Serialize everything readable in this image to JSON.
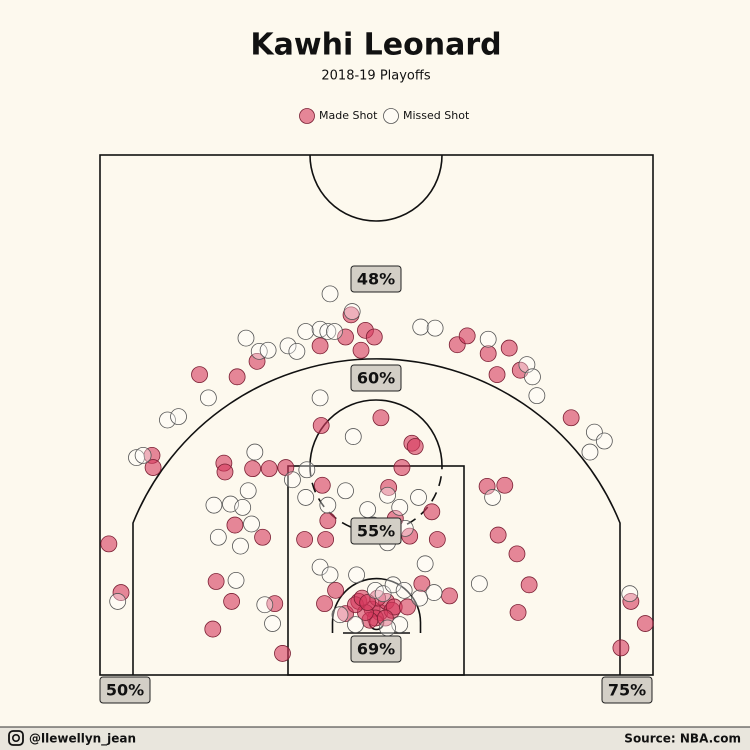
{
  "chart_data": {
    "type": "scatter",
    "title": "Kawhi Leonard",
    "subtitle": "2018-19 Playoffs",
    "xlim": [
      -250,
      250
    ],
    "ylim": [
      -47.5,
      422.5
    ],
    "series": [
      {
        "name": "Made Shot",
        "color": "#d6395d",
        "x": [
          -242,
          -231,
          -203,
          -202,
          -160,
          -148,
          -145,
          -138,
          -137,
          -131,
          -128,
          -126,
          -108,
          -103,
          -112,
          -97,
          -92,
          -85,
          -82,
          -65,
          -51,
          -50,
          -49,
          -47,
          -46,
          -44,
          -37,
          -28,
          -28,
          -23,
          -16,
          -14,
          -10,
          -2,
          4,
          -4,
          3,
          9,
          14,
          -1,
          -6,
          -10,
          1,
          11,
          17,
          23,
          16,
          28,
          30,
          32,
          35,
          41,
          50,
          55,
          66,
          73,
          82,
          101,
          100,
          110,
          109,
          116,
          120,
          127,
          130,
          128,
          138,
          176,
          221,
          230,
          243,
          -19,
          -13,
          -8,
          8
        ],
        "values": [
          71,
          27,
          151,
          140,
          224,
          -6,
          37,
          144,
          136,
          19,
          88,
          222,
          236,
          77,
          139,
          139,
          17,
          -28,
          140,
          75,
          250,
          178,
          124,
          17,
          75,
          92,
          29,
          258,
          8,
          278,
          19,
          246,
          264,
          258,
          185,
          12,
          9,
          19,
          11,
          4,
          2,
          9,
          22,
          122,
          94,
          140,
          14,
          14,
          78,
          162,
          159,
          35,
          100,
          75,
          24,
          251,
          259,
          243,
          123,
          79,
          224,
          124,
          248,
          62,
          228,
          9,
          34,
          185,
          -23,
          19,
          -1,
          16,
          22,
          18,
          4
        ]
      },
      {
        "name": "Missed Shot",
        "color": "#ffffff",
        "x": [
          -234,
          -217,
          -211,
          -189,
          -179,
          -152,
          -147,
          -143,
          -132,
          -127,
          -123,
          -121,
          -118,
          -116,
          -113,
          -110,
          -106,
          -101,
          -98,
          -94,
          -80,
          -76,
          -72,
          -64,
          -64,
          -51,
          -42,
          -44,
          -38,
          -22,
          -21,
          -51,
          -44,
          -28,
          -8,
          -3,
          10,
          10,
          21,
          26,
          38,
          44,
          52,
          -51,
          -42,
          -18,
          -1,
          6,
          15,
          25,
          39,
          21,
          10,
          -19,
          -33,
          40,
          53,
          93,
          101,
          105,
          136,
          141,
          145,
          197,
          206,
          193,
          229,
          -63
        ],
        "values": [
          19,
          149,
          151,
          183,
          186,
          203,
          106,
          77,
          107,
          38,
          69,
          104,
          257,
          119,
          89,
          154,
          245,
          16,
          246,
          -1,
          250,
          129,
          245,
          113,
          263,
          265,
          297,
          263,
          263,
          281,
          168,
          203,
          106,
          119,
          102,
          88,
          72,
          115,
          104,
          85,
          113,
          53,
          27,
          50,
          43,
          43,
          29,
          26,
          34,
          29,
          22,
          -2,
          -5,
          -2,
          7,
          267,
          266,
          35,
          256,
          113,
          233,
          222,
          205,
          172,
          164,
          154,
          26,
          138
        ]
      }
    ],
    "zones": {
      "values": [
        48,
        60,
        55,
        69,
        50,
        75
      ],
      "value_labels": [
        "48%",
        "60%",
        "55%",
        "69%",
        "50%",
        "75%"
      ]
    },
    "footer": {
      "handle": "@llewellyn_jean",
      "source": "Source: NBA.com"
    }
  }
}
